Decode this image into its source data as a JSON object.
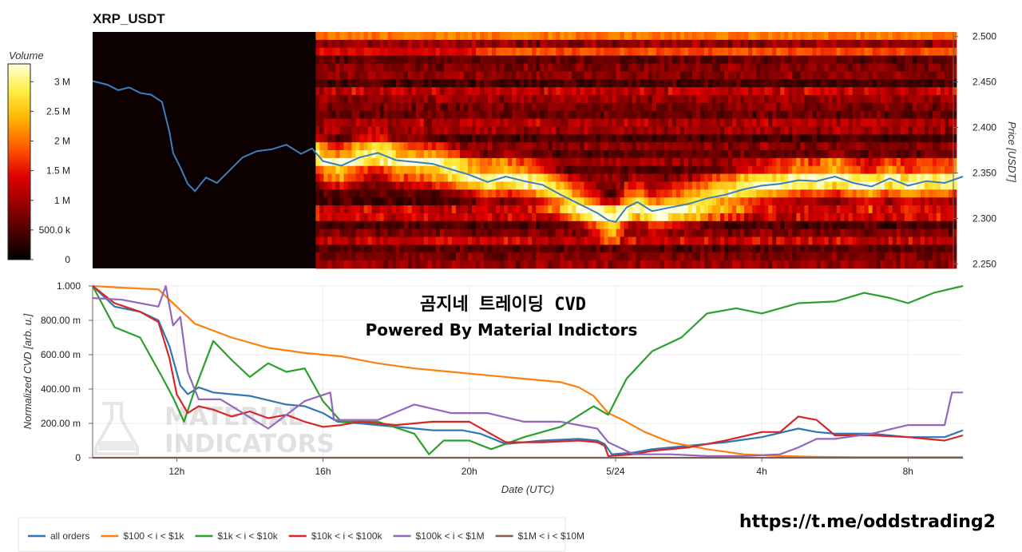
{
  "chart_data": [
    {
      "type": "heatmap",
      "title": "XRP_USDT",
      "ylabel": "Price [USDT]",
      "ylim": [
        2.245,
        2.505
      ],
      "y_ticks": [
        "2.250",
        "2.300",
        "2.350",
        "2.400",
        "2.450",
        "2.500"
      ],
      "colorbar": {
        "title": "Volume",
        "labels": [
          "0",
          "500.0 k",
          "1 M",
          "1.5 M",
          "2 M",
          "2.5 M",
          "3 M"
        ],
        "range": [
          0,
          3300000
        ],
        "colors": [
          "#000000",
          "#4a0000",
          "#9a0000",
          "#e00000",
          "#ff5a00",
          "#ffb000",
          "#ffee40",
          "#ffffd8"
        ]
      },
      "price": {
        "name": "price",
        "color": "#3a7fbf",
        "x": [
          9.7,
          10.1,
          10.4,
          10.7,
          11.0,
          11.3,
          11.6,
          11.8,
          11.9,
          12.1,
          12.3,
          12.5,
          12.8,
          13.1,
          13.4,
          13.8,
          14.2,
          14.6,
          15.0,
          15.4,
          15.7,
          16.0,
          16.5,
          17.0,
          17.5,
          18.0,
          18.5,
          19.0,
          19.5,
          20.0,
          20.5,
          21.0,
          21.5,
          22.0,
          22.5,
          23.0,
          23.5,
          23.8,
          24.0,
          24.3,
          24.6,
          25.0,
          25.5,
          26.0,
          26.5,
          27.0,
          27.5,
          28.0,
          28.5,
          29.0,
          29.5,
          30.0,
          30.5,
          31.0,
          31.5,
          32.0,
          32.5,
          33.0,
          33.5
        ],
        "y": [
          2.451,
          2.447,
          2.441,
          2.444,
          2.438,
          2.436,
          2.428,
          2.395,
          2.372,
          2.356,
          2.338,
          2.33,
          2.345,
          2.339,
          2.351,
          2.367,
          2.374,
          2.376,
          2.381,
          2.371,
          2.377,
          2.363,
          2.358,
          2.367,
          2.372,
          2.364,
          2.362,
          2.36,
          2.354,
          2.348,
          2.34,
          2.346,
          2.341,
          2.337,
          2.326,
          2.316,
          2.306,
          2.298,
          2.296,
          2.312,
          2.318,
          2.308,
          2.312,
          2.316,
          2.322,
          2.326,
          2.332,
          2.336,
          2.338,
          2.342,
          2.341,
          2.346,
          2.339,
          2.335,
          2.344,
          2.336,
          2.341,
          2.339,
          2.346
        ]
      }
    },
    {
      "type": "line",
      "title": "곰지네 트레이딩 CVD",
      "subtitle": "Powered By Material Indictors",
      "xlabel": "Date (UTC)",
      "ylabel": "Normalized CVD [arb. u.]",
      "xlim": [
        9.7,
        33.5
      ],
      "ylim": [
        0,
        1.0
      ],
      "x_ticks": [
        {
          "value": 12,
          "label": "12h"
        },
        {
          "value": 16,
          "label": "16h"
        },
        {
          "value": 20,
          "label": "20h"
        },
        {
          "value": 24,
          "label": "5/24"
        },
        {
          "value": 28,
          "label": "4h"
        },
        {
          "value": 32,
          "label": "8h"
        }
      ],
      "y_ticks": [
        {
          "value": 0,
          "label": "0"
        },
        {
          "value": 0.2,
          "label": "200.00 m"
        },
        {
          "value": 0.4,
          "label": "400.00 m"
        },
        {
          "value": 0.6,
          "label": "600.00 m"
        },
        {
          "value": 0.8,
          "label": "800.00 m"
        },
        {
          "value": 1.0,
          "label": "1.000"
        }
      ],
      "series": [
        {
          "name": "all orders",
          "color": "#2f77b4",
          "x": [
            9.7,
            10.3,
            11.0,
            11.5,
            11.8,
            12.1,
            12.3,
            12.6,
            13.0,
            14.0,
            15.0,
            15.5,
            16.0,
            16.4,
            17.0,
            18.0,
            19.0,
            19.8,
            20.3,
            21.0,
            22.0,
            23.0,
            23.5,
            23.7,
            23.9,
            24.5,
            25.0,
            26.0,
            27.0,
            28.0,
            29.0,
            29.5,
            30.0,
            31.0,
            32.0,
            33.0,
            33.5
          ],
          "y": [
            1.0,
            0.88,
            0.85,
            0.8,
            0.65,
            0.42,
            0.37,
            0.41,
            0.38,
            0.36,
            0.31,
            0.3,
            0.26,
            0.21,
            0.2,
            0.18,
            0.16,
            0.16,
            0.14,
            0.08,
            0.1,
            0.11,
            0.1,
            0.08,
            0.02,
            0.03,
            0.05,
            0.07,
            0.09,
            0.12,
            0.17,
            0.15,
            0.14,
            0.14,
            0.12,
            0.12,
            0.16
          ]
        },
        {
          "name": "$100 < i < $1k",
          "color": "#ff7f0e",
          "x": [
            9.7,
            10.5,
            11.5,
            12.0,
            12.5,
            13.5,
            14.5,
            15.5,
            16.5,
            17.5,
            18.5,
            19.5,
            20.5,
            21.5,
            22.5,
            23.0,
            23.4,
            23.8,
            24.2,
            24.8,
            25.5,
            26.5,
            27.5,
            28.5,
            29.5,
            30.5,
            31.5,
            32.5,
            33.5
          ],
          "y": [
            1.0,
            0.99,
            0.98,
            0.88,
            0.78,
            0.7,
            0.64,
            0.61,
            0.59,
            0.55,
            0.52,
            0.5,
            0.48,
            0.46,
            0.44,
            0.41,
            0.36,
            0.26,
            0.22,
            0.15,
            0.09,
            0.05,
            0.02,
            0.01,
            0.005,
            0.003,
            0.003,
            0.003,
            0.003
          ]
        },
        {
          "name": "$1k < i < $10k",
          "color": "#2ca02c",
          "x": [
            9.7,
            10.3,
            11.0,
            11.6,
            11.9,
            12.2,
            12.5,
            13.0,
            13.5,
            14.0,
            14.5,
            15.0,
            15.5,
            16.0,
            16.5,
            17.5,
            18.5,
            18.9,
            19.3,
            20.0,
            20.6,
            21.5,
            22.5,
            23.4,
            23.8,
            24.3,
            25.0,
            25.8,
            26.5,
            27.3,
            28.0,
            29.0,
            30.0,
            30.8,
            31.5,
            32.0,
            32.7,
            33.5
          ],
          "y": [
            1.0,
            0.76,
            0.7,
            0.47,
            0.35,
            0.21,
            0.4,
            0.68,
            0.57,
            0.47,
            0.55,
            0.5,
            0.52,
            0.33,
            0.21,
            0.21,
            0.14,
            0.02,
            0.1,
            0.1,
            0.05,
            0.12,
            0.18,
            0.3,
            0.25,
            0.46,
            0.62,
            0.7,
            0.84,
            0.87,
            0.84,
            0.9,
            0.91,
            0.96,
            0.93,
            0.9,
            0.96,
            1.0
          ]
        },
        {
          "name": "$10k < i < $100k",
          "color": "#d62728",
          "x": [
            9.7,
            10.3,
            11.0,
            11.5,
            11.8,
            12.0,
            12.3,
            12.6,
            13.0,
            13.5,
            14.0,
            14.5,
            15.0,
            15.5,
            16.0,
            16.5,
            17.0,
            18.0,
            19.0,
            20.0,
            21.0,
            22.0,
            23.0,
            23.5,
            23.7,
            23.8,
            24.5,
            25.0,
            26.0,
            27.0,
            28.0,
            28.5,
            29.0,
            29.5,
            30.0,
            31.0,
            32.0,
            33.0,
            33.5
          ],
          "y": [
            1.0,
            0.9,
            0.85,
            0.79,
            0.58,
            0.37,
            0.26,
            0.3,
            0.28,
            0.24,
            0.27,
            0.23,
            0.25,
            0.21,
            0.18,
            0.19,
            0.21,
            0.19,
            0.21,
            0.21,
            0.09,
            0.09,
            0.1,
            0.09,
            0.07,
            0.01,
            0.02,
            0.04,
            0.06,
            0.1,
            0.15,
            0.15,
            0.24,
            0.22,
            0.13,
            0.13,
            0.12,
            0.1,
            0.13
          ]
        },
        {
          "name": "$100k < i < $1M",
          "color": "#9467bd",
          "x": [
            9.7,
            10.5,
            11.5,
            11.7,
            11.9,
            12.1,
            12.3,
            12.6,
            13.2,
            14.5,
            15.5,
            16.2,
            16.3,
            17.5,
            18.5,
            19.5,
            20.5,
            21.5,
            22.5,
            23.5,
            23.8,
            24.5,
            25.5,
            26.5,
            27.5,
            28.5,
            29.0,
            29.5,
            30.0,
            31.0,
            32.0,
            33.0,
            33.2,
            33.5
          ],
          "y": [
            0.93,
            0.92,
            0.88,
            1.0,
            0.77,
            0.82,
            0.5,
            0.34,
            0.34,
            0.17,
            0.33,
            0.38,
            0.22,
            0.22,
            0.31,
            0.26,
            0.26,
            0.21,
            0.21,
            0.17,
            0.09,
            0.02,
            0.02,
            0.01,
            0.01,
            0.02,
            0.06,
            0.11,
            0.11,
            0.14,
            0.19,
            0.19,
            0.38,
            0.38
          ]
        },
        {
          "name": "$1M < i < $10M",
          "color": "#8c564b",
          "x": [
            9.7,
            33.5
          ],
          "y": [
            0.0,
            0.0
          ]
        }
      ]
    }
  ],
  "watermark": {
    "line1": "MATERIAL",
    "line2": "INDICATORS"
  },
  "footer_link": "https://t.me/oddstrading2"
}
